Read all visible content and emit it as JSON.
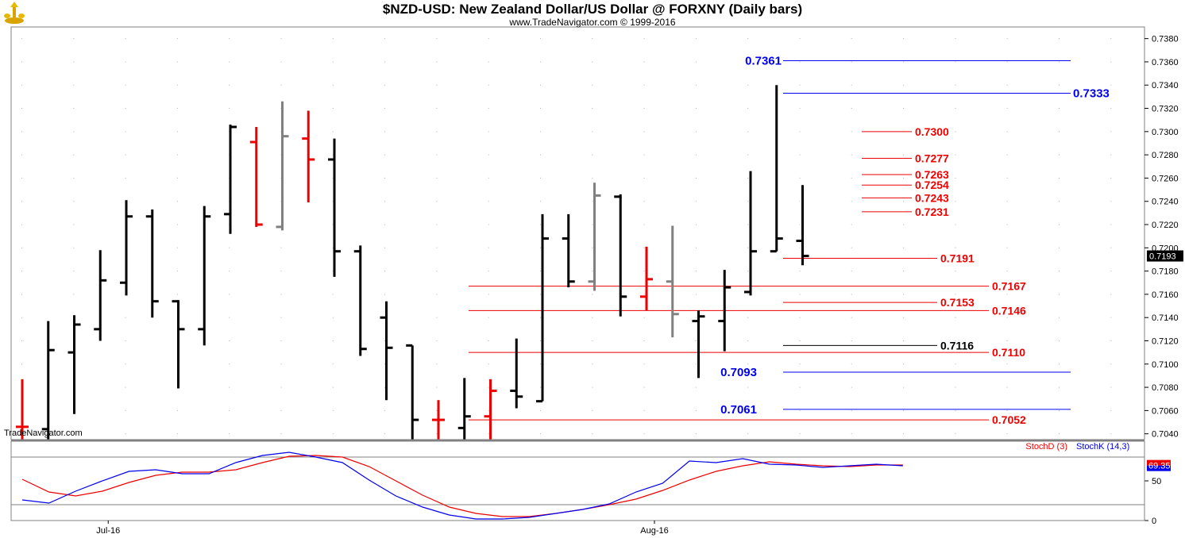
{
  "header": {
    "title": "$NZD-USD:  New Zealand Dollar/US Dollar @ FORXNY  (Daily bars)",
    "copyright": "www.TradeNavigator.com © 1999-2016",
    "watermark": "TradeNavigator.com"
  },
  "chart_data": [
    {
      "type": "ohlc",
      "title": "$NZD-USD:  New Zealand Dollar/US Dollar @ FORXNY  (Daily bars)",
      "ylim": [
        0.7035,
        0.739
      ],
      "y_ticks": [
        "0.7040",
        "0.7060",
        "0.7080",
        "0.7100",
        "0.7120",
        "0.7140",
        "0.7160",
        "0.7180",
        "0.7200",
        "0.7220",
        "0.7240",
        "0.7260",
        "0.7280",
        "0.7300",
        "0.7320",
        "0.7340",
        "0.7360",
        "0.7380"
      ],
      "x_ticks": [
        {
          "label": "Jul-16",
          "bar": 3
        },
        {
          "label": "Aug-16",
          "bar": 24
        }
      ],
      "current_price": "0.7193",
      "colors": {
        "up": "#000000",
        "down": "#ee0000",
        "neutral": "#808080"
      },
      "bars": [
        {
          "o": 0.7046,
          "h": 0.7087,
          "l": 0.7035,
          "c": 0.7046,
          "color": "down"
        },
        {
          "o": 0.7044,
          "h": 0.7137,
          "l": 0.7035,
          "c": 0.7112,
          "color": "up"
        },
        {
          "o": 0.711,
          "h": 0.7142,
          "l": 0.7057,
          "c": 0.7134,
          "color": "up"
        },
        {
          "o": 0.713,
          "h": 0.7198,
          "l": 0.712,
          "c": 0.7172,
          "color": "up"
        },
        {
          "o": 0.717,
          "h": 0.7241,
          "l": 0.7159,
          "c": 0.7227,
          "color": "up"
        },
        {
          "o": 0.7227,
          "h": 0.7233,
          "l": 0.714,
          "c": 0.7154,
          "color": "up"
        },
        {
          "o": 0.7154,
          "h": 0.7155,
          "l": 0.7079,
          "c": 0.713,
          "color": "up"
        },
        {
          "o": 0.713,
          "h": 0.7236,
          "l": 0.7116,
          "c": 0.7227,
          "color": "up"
        },
        {
          "o": 0.7229,
          "h": 0.7306,
          "l": 0.7212,
          "c": 0.7304,
          "color": "up"
        },
        {
          "o": 0.7291,
          "h": 0.7304,
          "l": 0.7218,
          "c": 0.722,
          "color": "down"
        },
        {
          "o": 0.7218,
          "h": 0.7326,
          "l": 0.7215,
          "c": 0.7296,
          "color": "neutral"
        },
        {
          "o": 0.7294,
          "h": 0.7318,
          "l": 0.7239,
          "c": 0.7276,
          "color": "down"
        },
        {
          "o": 0.7276,
          "h": 0.7294,
          "l": 0.7175,
          "c": 0.7197,
          "color": "up"
        },
        {
          "o": 0.7197,
          "h": 0.7202,
          "l": 0.7107,
          "c": 0.7113,
          "color": "up"
        },
        {
          "o": 0.714,
          "h": 0.7154,
          "l": 0.7069,
          "c": 0.7114,
          "color": "up"
        },
        {
          "o": 0.7116,
          "h": 0.7116,
          "l": 0.7035,
          "c": 0.7052,
          "color": "up"
        },
        {
          "o": 0.7052,
          "h": 0.7069,
          "l": 0.7035,
          "c": 0.7052,
          "color": "down"
        },
        {
          "o": 0.7045,
          "h": 0.7088,
          "l": 0.7035,
          "c": 0.7055,
          "color": "up"
        },
        {
          "o": 0.7055,
          "h": 0.7087,
          "l": 0.7035,
          "c": 0.7077,
          "color": "down"
        },
        {
          "o": 0.7077,
          "h": 0.7122,
          "l": 0.7062,
          "c": 0.7072,
          "color": "up"
        },
        {
          "o": 0.7068,
          "h": 0.7229,
          "l": 0.7068,
          "c": 0.7208,
          "color": "up"
        },
        {
          "o": 0.7208,
          "h": 0.7229,
          "l": 0.7166,
          "c": 0.7171,
          "color": "up"
        },
        {
          "o": 0.7171,
          "h": 0.7256,
          "l": 0.7163,
          "c": 0.7245,
          "color": "neutral"
        },
        {
          "o": 0.7244,
          "h": 0.7246,
          "l": 0.7141,
          "c": 0.7158,
          "color": "up"
        },
        {
          "o": 0.7158,
          "h": 0.7201,
          "l": 0.7146,
          "c": 0.7173,
          "color": "down"
        },
        {
          "o": 0.7171,
          "h": 0.7219,
          "l": 0.7123,
          "c": 0.7143,
          "color": "neutral"
        },
        {
          "o": 0.7137,
          "h": 0.7146,
          "l": 0.7088,
          "c": 0.7141,
          "color": "up"
        },
        {
          "o": 0.7137,
          "h": 0.7181,
          "l": 0.7111,
          "c": 0.7166,
          "color": "up"
        },
        {
          "o": 0.7162,
          "h": 0.7266,
          "l": 0.7159,
          "c": 0.7197,
          "color": "up"
        },
        {
          "o": 0.7197,
          "h": 0.734,
          "l": 0.7197,
          "c": 0.7208,
          "color": "up"
        },
        {
          "o": 0.7206,
          "h": 0.7254,
          "l": 0.7185,
          "c": 0.7193,
          "color": "up"
        }
      ],
      "levels": [
        {
          "value": 0.7361,
          "label": "0.7361",
          "color": "#0000ee",
          "label_side": "left"
        },
        {
          "value": 0.7333,
          "label": "0.7333",
          "color": "#0000ee",
          "label_side": "right"
        },
        {
          "value": 0.73,
          "label": "0.7300",
          "color": "#ee0000",
          "label_side": "right"
        },
        {
          "value": 0.7277,
          "label": "0.7277",
          "color": "#ee0000",
          "label_side": "right"
        },
        {
          "value": 0.7263,
          "label": "0.7263",
          "color": "#ee0000",
          "label_side": "right"
        },
        {
          "value": 0.7254,
          "label": "0.7254",
          "color": "#ee0000",
          "label_side": "right"
        },
        {
          "value": 0.7243,
          "label": "0.7243",
          "color": "#ee0000",
          "label_side": "right"
        },
        {
          "value": 0.7231,
          "label": "0.7231",
          "color": "#ee0000",
          "label_side": "right"
        },
        {
          "value": 0.7191,
          "label": "0.7191",
          "color": "#ee0000",
          "label_side": "right"
        },
        {
          "value": 0.7167,
          "label": "0.7167",
          "color": "#ee0000",
          "label_side": "right"
        },
        {
          "value": 0.7153,
          "label": "0.7153",
          "color": "#ee0000",
          "label_side": "right"
        },
        {
          "value": 0.7146,
          "label": "0.7146",
          "color": "#ee0000",
          "label_side": "right"
        },
        {
          "value": 0.7116,
          "label": "0.7116",
          "color": "#000000",
          "label_side": "right"
        },
        {
          "value": 0.711,
          "label": "0.7110",
          "color": "#ee0000",
          "label_side": "right"
        },
        {
          "value": 0.7093,
          "label": "0.7093",
          "color": "#0000ee",
          "label_side": "left"
        },
        {
          "value": 0.7061,
          "label": "0.7061",
          "color": "#0000ee",
          "label_side": "left"
        },
        {
          "value": 0.7052,
          "label": "0.7052",
          "color": "#ee0000",
          "label_side": "right"
        }
      ]
    },
    {
      "type": "line",
      "ylim": [
        0,
        100
      ],
      "y_ticks": [
        "0",
        "50"
      ],
      "reference_lines": [
        20,
        80
      ],
      "current_value": "69.35",
      "series": [
        {
          "name": "StochD (3)",
          "color": "#ee0000",
          "values": [
            52,
            36,
            31,
            37,
            48,
            57,
            61,
            61,
            64,
            73,
            81,
            82,
            80,
            68,
            50,
            32,
            17,
            9,
            5,
            5,
            9,
            14,
            20,
            27,
            38,
            51,
            62,
            69,
            74,
            71,
            69,
            68,
            70,
            70
          ]
        },
        {
          "name": "StochK (14,3)",
          "color": "#0000ee",
          "values": [
            26,
            22,
            37,
            50,
            62,
            64,
            59,
            59,
            73,
            82,
            86,
            80,
            73,
            51,
            31,
            17,
            7,
            2,
            2,
            4,
            9,
            14,
            21,
            36,
            47,
            75,
            73,
            78,
            71,
            70,
            67,
            69,
            71,
            69
          ]
        }
      ]
    }
  ]
}
